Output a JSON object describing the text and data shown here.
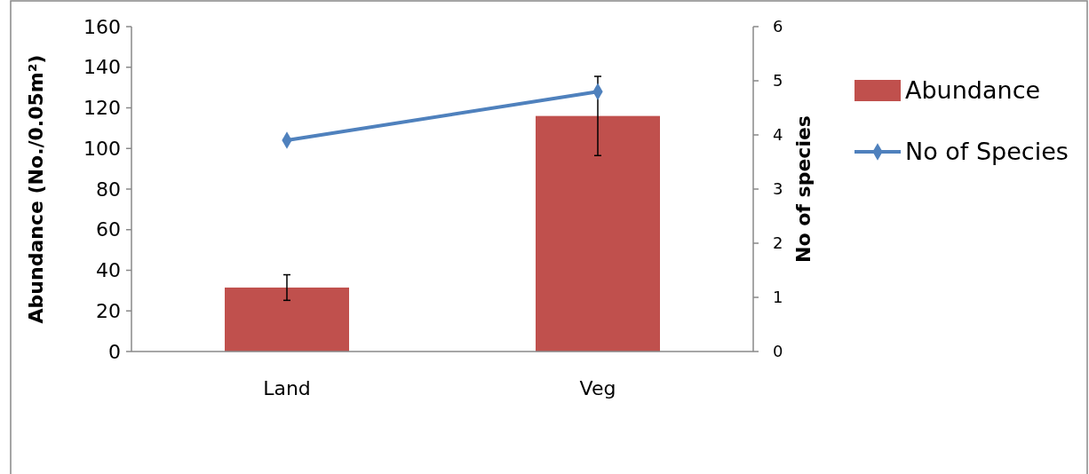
{
  "chart_data": {
    "type": "bar",
    "categories": [
      "Land",
      "Veg"
    ],
    "series": [
      {
        "name": "Abundance",
        "color": "#c0504d",
        "values": [
          31.5,
          116
        ],
        "errors": [
          6.3,
          19.5
        ]
      },
      {
        "name": "No of Species",
        "type": "line",
        "color": "#4f81bd",
        "values": [
          3.9,
          4.8
        ],
        "axis": "y2",
        "marker": "diamond"
      }
    ],
    "ylabel": "Abundance (No./0.05m²)",
    "y2label": "No of species",
    "ylim": [
      0,
      160
    ],
    "yticks": [
      0,
      20,
      40,
      60,
      80,
      100,
      120,
      140,
      160
    ],
    "y2lim": [
      0,
      6
    ],
    "y2ticks": [
      0,
      1,
      2,
      3,
      4,
      5,
      6
    ],
    "grid": false,
    "legend": "right"
  }
}
